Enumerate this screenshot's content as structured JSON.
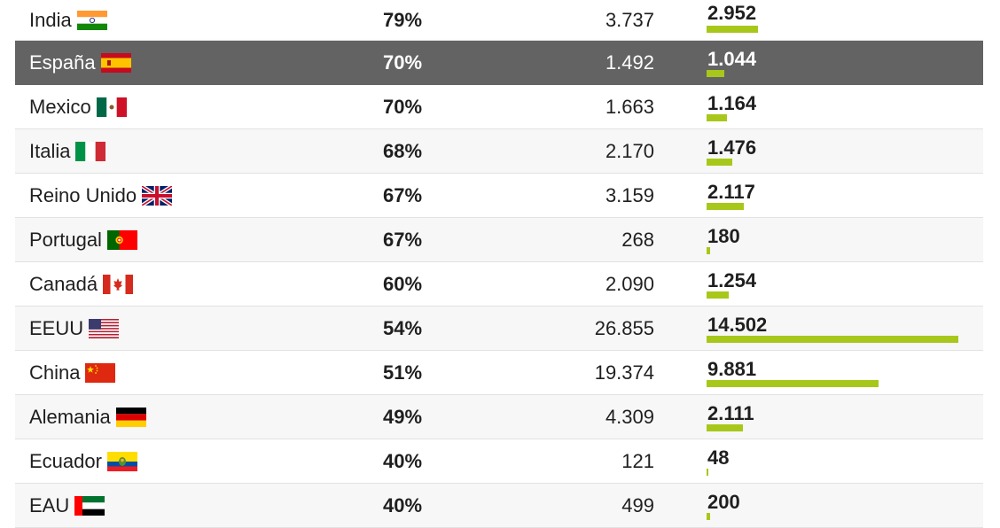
{
  "chart_data": {
    "type": "table",
    "columns": [
      "country",
      "percent",
      "total",
      "value"
    ],
    "rows": [
      {
        "country": "India",
        "flag": "india-flag",
        "percent": "79%",
        "total": "3.737",
        "value_label": "2.952",
        "value": 2952
      },
      {
        "country": "España",
        "flag": "spain-flag",
        "percent": "70%",
        "total": "1.492",
        "value_label": "1.044",
        "value": 1044,
        "highlight": true
      },
      {
        "country": "Mexico",
        "flag": "mexico-flag",
        "percent": "70%",
        "total": "1.663",
        "value_label": "1.164",
        "value": 1164
      },
      {
        "country": "Italia",
        "flag": "italy-flag",
        "percent": "68%",
        "total": "2.170",
        "value_label": "1.476",
        "value": 1476
      },
      {
        "country": "Reino Unido",
        "flag": "uk-flag",
        "percent": "67%",
        "total": "3.159",
        "value_label": "2.117",
        "value": 2117
      },
      {
        "country": "Portugal",
        "flag": "portugal-flag",
        "percent": "67%",
        "total": "268",
        "value_label": "180",
        "value": 180
      },
      {
        "country": "Canadá",
        "flag": "canada-flag",
        "percent": "60%",
        "total": "2.090",
        "value_label": "1.254",
        "value": 1254
      },
      {
        "country": "EEUU",
        "flag": "usa-flag",
        "percent": "54%",
        "total": "26.855",
        "value_label": "14.502",
        "value": 14502
      },
      {
        "country": "China",
        "flag": "china-flag",
        "percent": "51%",
        "total": "19.374",
        "value_label": "9.881",
        "value": 9881
      },
      {
        "country": "Alemania",
        "flag": "germany-flag",
        "percent": "49%",
        "total": "4.309",
        "value_label": "2.111",
        "value": 2111
      },
      {
        "country": "Ecuador",
        "flag": "ecuador-flag",
        "percent": "40%",
        "total": "121",
        "value_label": "48",
        "value": 48
      },
      {
        "country": "EAU",
        "flag": "uae-flag",
        "percent": "40%",
        "total": "499",
        "value_label": "200",
        "value": 200
      }
    ],
    "bar_max": 14502,
    "bar_color": "#a7c81a",
    "highlight_color": "#636363"
  }
}
